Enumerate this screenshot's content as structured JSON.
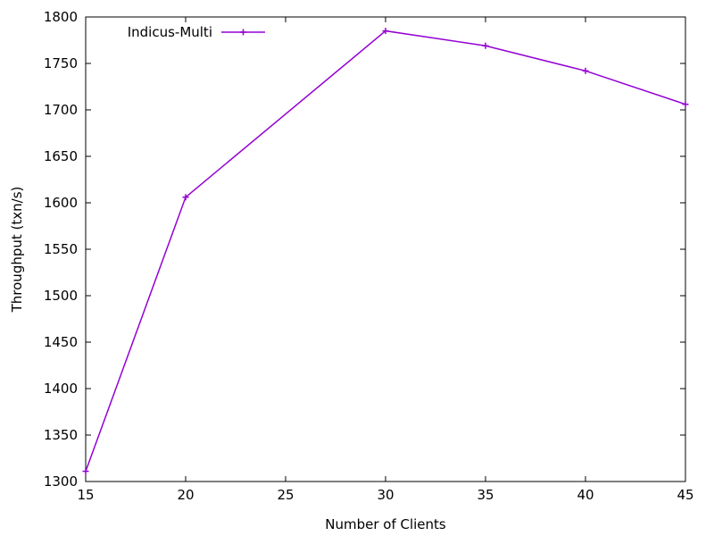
{
  "chart_data": {
    "type": "line",
    "title": "",
    "xlabel": "Number of Clients",
    "ylabel": "Throughput (txn/s)",
    "xlim": [
      15,
      45
    ],
    "ylim": [
      1300,
      1800
    ],
    "xticks": [
      15,
      20,
      25,
      30,
      35,
      40,
      45
    ],
    "yticks": [
      1300,
      1350,
      1400,
      1450,
      1500,
      1550,
      1600,
      1650,
      1700,
      1750,
      1800
    ],
    "grid": false,
    "legend_position": "top-left",
    "series": [
      {
        "name": "Indicus-Multi",
        "color": "#9400d3",
        "marker": "plus",
        "x": [
          15,
          20,
          30,
          35,
          40,
          45
        ],
        "y": [
          1311,
          1606,
          1785,
          1769,
          1742,
          1706
        ]
      }
    ]
  }
}
